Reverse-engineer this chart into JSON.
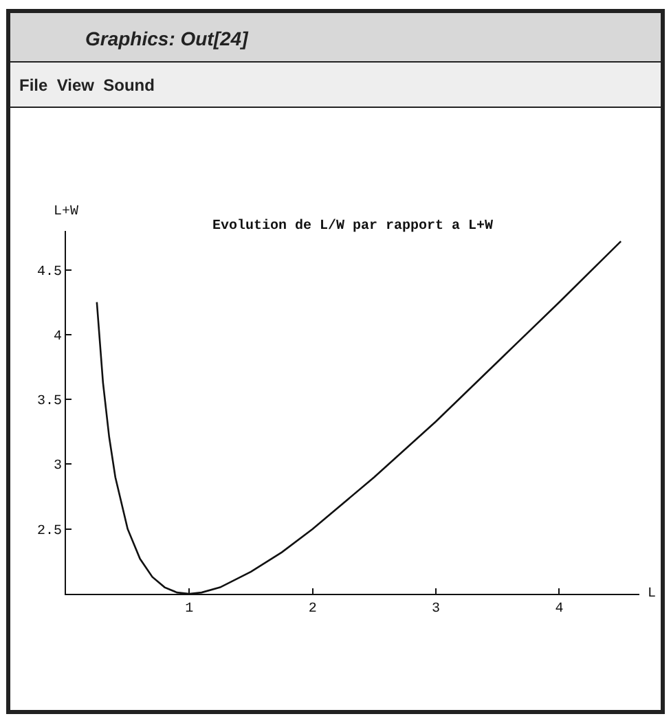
{
  "chart_data": {
    "type": "line",
    "title": "Evolution de L/W par rapport a L+W",
    "xlabel": "L",
    "ylabel": "L+W",
    "annotations": [
      "Graphics: Out[24]",
      "File  View  Sound"
    ],
    "x": [
      0.25,
      0.3,
      0.35,
      0.4,
      0.5,
      0.6,
      0.7,
      0.8,
      0.9,
      1,
      1.1,
      1.25,
      1.5,
      1.75,
      2,
      2.5,
      3,
      3.5,
      4,
      4.5
    ],
    "series": [
      {
        "color": "#111111",
        "values": [
          4.25,
          3.63,
          3.21,
          2.9,
          2.5,
          2.27,
          2.13,
          2.05,
          2.01,
          2,
          2.01,
          2.05,
          2.17,
          2.32,
          2.5,
          2.9,
          3.33,
          3.79,
          4.25,
          4.72
        ]
      }
    ],
    "xlim": [
      0,
      4.65
    ],
    "ylim": [
      2,
      4.8
    ],
    "xticks": [
      1,
      2,
      3,
      4
    ],
    "yticks": [
      2.5,
      3,
      3.5,
      4,
      4.5
    ],
    "marker": "none",
    "line_style": "solid"
  }
}
